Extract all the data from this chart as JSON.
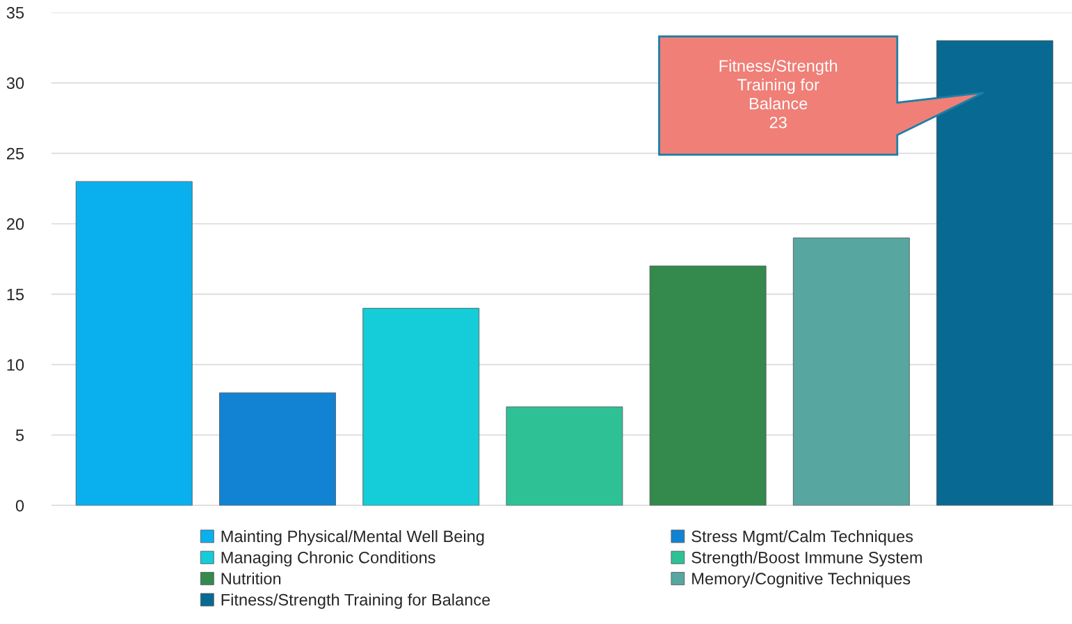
{
  "chart_data": {
    "type": "bar",
    "categories": [
      null
    ],
    "series": [
      {
        "name": "Mainting Physical/Mental Well Being",
        "color": "#0ab0ee",
        "values": [
          23
        ]
      },
      {
        "name": "Stress Mgmt/Calm Techniques",
        "color": "#1282d2",
        "values": [
          8
        ]
      },
      {
        "name": "Managing Chronic Conditions",
        "color": "#14cdd8",
        "values": [
          14
        ]
      },
      {
        "name": "Strength/Boost Immune System",
        "color": "#2ec196",
        "values": [
          7
        ]
      },
      {
        "name": "Nutrition",
        "color": "#338a4c",
        "values": [
          17
        ]
      },
      {
        "name": "Memory/Cognitive Techniques",
        "color": "#57a6a0",
        "values": [
          19
        ]
      },
      {
        "name": "Fitness/Strength Training for Balance",
        "color": "#086a92",
        "values": [
          33
        ]
      }
    ],
    "ylim": [
      0,
      35
    ],
    "yticks": [
      0,
      5,
      10,
      15,
      20,
      25,
      30,
      35
    ],
    "grid": "y",
    "legend": "bottom",
    "tick_labels": "y",
    "annotations": [
      "Fitness/Strength\nTraining for\nBalance\n23"
    ]
  }
}
